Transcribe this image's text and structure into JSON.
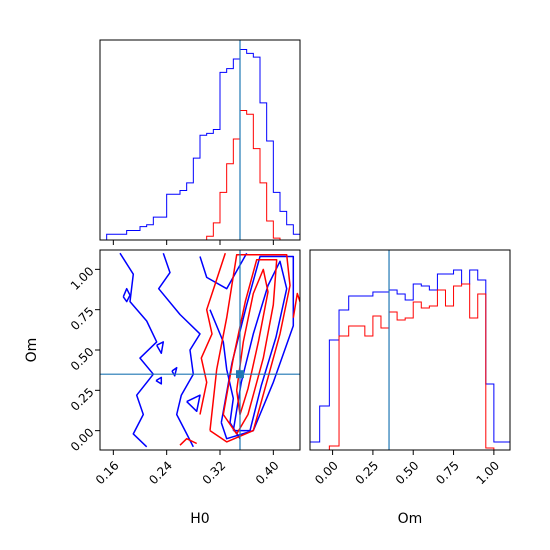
{
  "chart_data": [
    {
      "type": "step-histogram",
      "panel": "H0 marginal",
      "x_param": "H0",
      "xlim": [
        0.14,
        0.44
      ],
      "bin_edges": [
        0.14,
        0.15,
        0.16,
        0.17,
        0.18,
        0.19,
        0.2,
        0.21,
        0.22,
        0.23,
        0.24,
        0.25,
        0.26,
        0.27,
        0.28,
        0.29,
        0.3,
        0.31,
        0.32,
        0.33,
        0.34,
        0.35,
        0.36,
        0.37,
        0.38,
        0.39,
        0.4,
        0.41,
        0.42,
        0.43,
        0.44
      ],
      "series": [
        {
          "color": "#0000ff",
          "counts": [
            0,
            0.03,
            0.03,
            0.03,
            0.05,
            0.05,
            0.07,
            0.08,
            0.12,
            0.12,
            0.24,
            0.24,
            0.26,
            0.3,
            0.43,
            0.55,
            0.56,
            0.58,
            0.88,
            0.9,
            0.95,
            1.0,
            0.98,
            0.96,
            0.72,
            0.52,
            0.25,
            0.15,
            0.08,
            0.03
          ]
        },
        {
          "color": "#ff0000",
          "counts": [
            0,
            0,
            0,
            0,
            0,
            0,
            0,
            0,
            0,
            0,
            0,
            0,
            0,
            0,
            0,
            0,
            0.02,
            0.09,
            0.25,
            0.4,
            0.53,
            0.68,
            0.66,
            0.48,
            0.3,
            0.1,
            0.01,
            0,
            0,
            0
          ]
        }
      ],
      "truth_value": 0.35,
      "x_ticks": [
        "0.16",
        "0.24",
        "0.32",
        "0.40"
      ],
      "x_tick_values": [
        0.16,
        0.24,
        0.32,
        0.4
      ]
    },
    {
      "type": "contour",
      "panel": "H0 vs Om joint",
      "x_param": "H0",
      "y_param": "Om",
      "xlim": [
        0.14,
        0.44
      ],
      "ylim": [
        -0.12,
        1.12
      ],
      "truth": {
        "H0": 0.35,
        "Om": 0.35
      },
      "series": [
        {
          "color": "#0000ff",
          "contours": [
            [
              [
                0.34,
                0.0
              ],
              [
                0.352,
                0.3
              ],
              [
                0.37,
                0.6
              ],
              [
                0.392,
                0.9
              ],
              [
                0.41,
                1.05
              ],
              [
                0.42,
                0.88
              ],
              [
                0.404,
                0.58
              ],
              [
                0.382,
                0.28
              ],
              [
                0.365,
                0.0
              ],
              [
                0.34,
                0.0
              ]
            ],
            [
              [
                0.322,
                0.05
              ],
              [
                0.338,
                0.42
              ],
              [
                0.36,
                0.78
              ],
              [
                0.38,
                1.08
              ],
              [
                0.43,
                1.08
              ],
              [
                0.43,
                0.65
              ],
              [
                0.4,
                0.3
              ],
              [
                0.37,
                0.0
              ],
              [
                0.33,
                -0.05
              ],
              [
                0.322,
                0.05
              ]
            ],
            [
              [
                0.29,
                1.08
              ],
              [
                0.3,
                0.95
              ],
              [
                0.33,
                0.88
              ],
              [
                0.36,
                1.1
              ]
            ],
            [
              [
                0.305,
                0.75
              ],
              [
                0.325,
                0.55
              ],
              [
                0.33,
                0.38
              ],
              [
                0.34,
                0.2
              ],
              [
                0.335,
                0.05
              ],
              [
                0.35,
                -0.05
              ]
            ],
            [
              [
                0.17,
                1.1
              ],
              [
                0.19,
                0.97
              ],
              [
                0.185,
                0.8
              ],
              [
                0.21,
                0.68
              ],
              [
                0.225,
                0.55
              ],
              [
                0.2,
                0.45
              ],
              [
                0.22,
                0.35
              ],
              [
                0.195,
                0.22
              ],
              [
                0.205,
                0.1
              ],
              [
                0.19,
                -0.02
              ],
              [
                0.21,
                -0.1
              ]
            ],
            [
              [
                0.235,
                1.1
              ],
              [
                0.245,
                0.98
              ],
              [
                0.228,
                0.88
              ],
              [
                0.26,
                0.72
              ],
              [
                0.29,
                0.6
              ],
              [
                0.275,
                0.5
              ],
              [
                0.28,
                0.35
              ],
              [
                0.262,
                0.22
              ],
              [
                0.255,
                0.1
              ],
              [
                0.27,
                -0.02
              ],
              [
                0.28,
                -0.1
              ]
            ],
            [
              [
                0.175,
                0.83
              ],
              [
                0.18,
                0.88
              ],
              [
                0.185,
                0.84
              ],
              [
                0.18,
                0.8
              ],
              [
                0.175,
                0.83
              ]
            ],
            [
              [
                0.225,
                0.53
              ],
              [
                0.235,
                0.55
              ],
              [
                0.232,
                0.48
              ],
              [
                0.225,
                0.53
              ]
            ],
            [
              [
                0.248,
                0.37
              ],
              [
                0.255,
                0.39
              ],
              [
                0.252,
                0.34
              ],
              [
                0.248,
                0.37
              ]
            ],
            [
              [
                0.224,
                0.31
              ],
              [
                0.232,
                0.33
              ],
              [
                0.232,
                0.29
              ],
              [
                0.224,
                0.31
              ]
            ],
            [
              [
                0.27,
                0.18
              ],
              [
                0.29,
                0.22
              ],
              [
                0.285,
                0.12
              ],
              [
                0.27,
                0.18
              ]
            ]
          ]
        },
        {
          "color": "#ff0000",
          "contours": [
            [
              [
                0.345,
                0.25
              ],
              [
                0.355,
                0.55
              ],
              [
                0.37,
                0.85
              ],
              [
                0.385,
                1.0
              ],
              [
                0.392,
                0.86
              ],
              [
                0.378,
                0.56
              ],
              [
                0.362,
                0.26
              ],
              [
                0.35,
                0.1
              ],
              [
                0.345,
                0.25
              ]
            ],
            [
              [
                0.325,
                0.1
              ],
              [
                0.34,
                0.45
              ],
              [
                0.358,
                0.8
              ],
              [
                0.375,
                1.06
              ],
              [
                0.405,
                1.06
              ],
              [
                0.4,
                0.78
              ],
              [
                0.385,
                0.45
              ],
              [
                0.362,
                0.1
              ],
              [
                0.345,
                -0.02
              ],
              [
                0.325,
                0.1
              ]
            ],
            [
              [
                0.305,
                0.0
              ],
              [
                0.315,
                0.38
              ],
              [
                0.33,
                0.7
              ],
              [
                0.345,
                1.09
              ],
              [
                0.42,
                1.09
              ],
              [
                0.425,
                0.9
              ],
              [
                0.41,
                0.6
              ],
              [
                0.39,
                0.3
              ],
              [
                0.37,
                0.0
              ],
              [
                0.33,
                -0.07
              ],
              [
                0.305,
                0.0
              ]
            ],
            [
              [
                0.29,
                0.1
              ],
              [
                0.3,
                0.3
              ],
              [
                0.292,
                0.45
              ],
              [
                0.308,
                0.6
              ],
              [
                0.3,
                0.75
              ],
              [
                0.312,
                0.9
              ],
              [
                0.328,
                1.1
              ]
            ],
            [
              [
                0.26,
                -0.09
              ],
              [
                0.27,
                -0.05
              ],
              [
                0.285,
                -0.08
              ]
            ],
            [
              [
                0.43,
                0.7
              ],
              [
                0.436,
                0.85
              ],
              [
                0.44,
                0.8
              ]
            ]
          ]
        }
      ],
      "x_ticks": [
        "0.16",
        "0.24",
        "0.32",
        "0.40"
      ],
      "x_tick_values": [
        0.16,
        0.24,
        0.32,
        0.4
      ],
      "y_ticks": [
        "0.00",
        "0.25",
        "0.50",
        "0.75",
        "1.00"
      ],
      "y_tick_values": [
        0,
        0.25,
        0.5,
        0.75,
        1.0
      ],
      "xlabel": "H0",
      "ylabel": "Om"
    },
    {
      "type": "step-histogram",
      "panel": "Om marginal",
      "x_param": "Om",
      "xlim": [
        -0.14,
        1.1
      ],
      "bin_edges": [
        -0.14,
        -0.08,
        -0.02,
        0.04,
        0.1,
        0.15,
        0.2,
        0.25,
        0.3,
        0.35,
        0.4,
        0.45,
        0.5,
        0.55,
        0.6,
        0.65,
        0.7,
        0.75,
        0.8,
        0.85,
        0.9,
        0.95,
        1.0,
        1.1
      ],
      "series": [
        {
          "color": "#0000ff",
          "counts": [
            0.04,
            0.22,
            0.55,
            0.7,
            0.77,
            0.77,
            0.77,
            0.79,
            0.79,
            0.8,
            0.78,
            0.75,
            0.83,
            0.82,
            0.8,
            0.88,
            0.88,
            0.9,
            0.83,
            0.9,
            0.85,
            0.33,
            0.04
          ]
        },
        {
          "color": "#ff0000",
          "counts": [
            0,
            0,
            0.02,
            0.57,
            0.62,
            0.62,
            0.57,
            0.67,
            0.61,
            0.69,
            0.65,
            0.66,
            0.74,
            0.71,
            0.72,
            0.8,
            0.72,
            0.82,
            0.83,
            0.66,
            0.78,
            0.01,
            0
          ]
        }
      ],
      "truth_value": 0.35,
      "x_ticks": [
        "0.00",
        "0.25",
        "0.50",
        "0.75",
        "1.00"
      ],
      "x_tick_values": [
        0,
        0.25,
        0.5,
        0.75,
        1.0
      ],
      "xlabel": "Om"
    }
  ],
  "colors": {
    "truth_line": "#1f77b4",
    "series_1": "#0000ff",
    "series_2": "#ff0000"
  }
}
